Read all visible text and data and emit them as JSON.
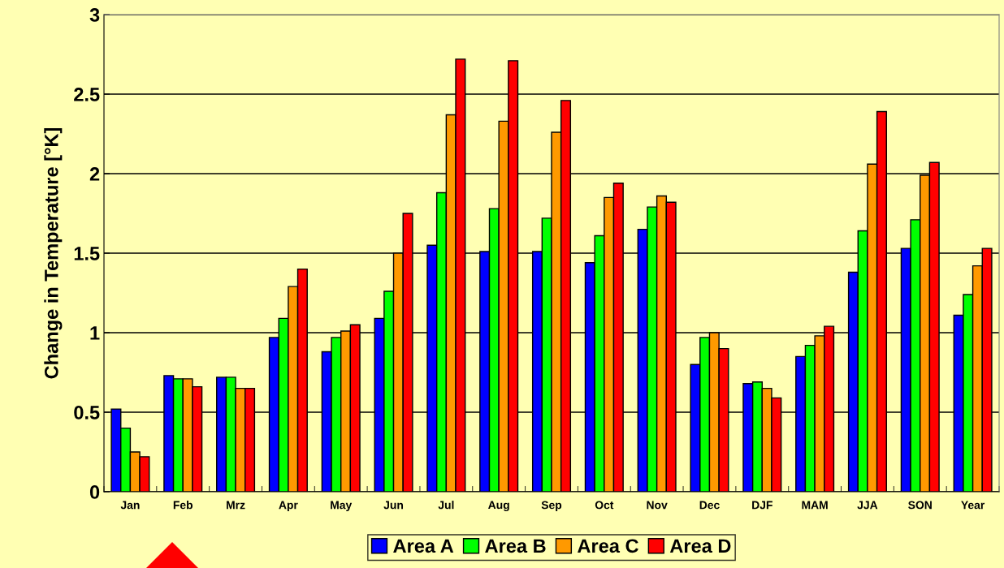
{
  "chart_data": {
    "type": "bar",
    "ylabel": "Change in Temperature [°K]",
    "categories": [
      "Jan",
      "Feb",
      "Mrz",
      "Apr",
      "May",
      "Jun",
      "Jul",
      "Aug",
      "Sep",
      "Oct",
      "Nov",
      "Dec",
      "DJF",
      "MAM",
      "JJA",
      "SON",
      "Year"
    ],
    "series": [
      {
        "name": "Area A",
        "color": "#0000ff",
        "values": [
          0.52,
          0.73,
          0.72,
          0.97,
          0.88,
          1.09,
          1.55,
          1.51,
          1.51,
          1.44,
          1.65,
          0.8,
          0.68,
          0.85,
          1.38,
          1.53,
          1.11
        ]
      },
      {
        "name": "Area B",
        "color": "#00ff00",
        "values": [
          0.4,
          0.71,
          0.72,
          1.09,
          0.97,
          1.26,
          1.88,
          1.78,
          1.72,
          1.61,
          1.79,
          0.97,
          0.69,
          0.92,
          1.64,
          1.71,
          1.24
        ]
      },
      {
        "name": "Area C",
        "color": "#ff9900",
        "values": [
          0.25,
          0.71,
          0.65,
          1.29,
          1.01,
          1.5,
          2.37,
          2.33,
          2.26,
          1.85,
          1.86,
          1.0,
          0.65,
          0.98,
          2.06,
          1.99,
          1.42
        ]
      },
      {
        "name": "Area D",
        "color": "#ff0000",
        "values": [
          0.22,
          0.66,
          0.65,
          1.4,
          1.05,
          1.75,
          2.72,
          2.71,
          2.46,
          1.94,
          1.82,
          0.9,
          0.59,
          1.04,
          2.39,
          2.07,
          1.53
        ]
      }
    ],
    "ylim": [
      0,
      3
    ],
    "yticks": [
      0,
      0.5,
      1,
      1.5,
      2,
      2.5,
      3
    ],
    "grid": "y",
    "legend": "bottom"
  }
}
